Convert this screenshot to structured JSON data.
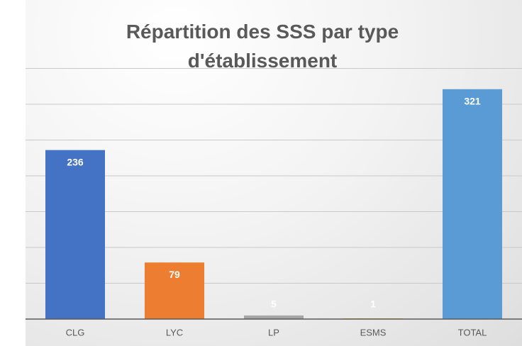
{
  "chart_data": {
    "type": "bar",
    "title": "Répartition des SSS par type d'établissement",
    "categories": [
      "CLG",
      "LYC",
      "LP",
      "ESMS",
      "TOTAL"
    ],
    "values": [
      236,
      79,
      5,
      1,
      321
    ],
    "colors": [
      "#4472c4",
      "#ed7d31",
      "#a5a5a5",
      "#ffc000",
      "#5b9bd5"
    ],
    "ylim": [
      0,
      350
    ],
    "yticks": [
      0,
      50,
      100,
      150,
      200,
      250,
      300,
      350
    ],
    "grid": true
  }
}
